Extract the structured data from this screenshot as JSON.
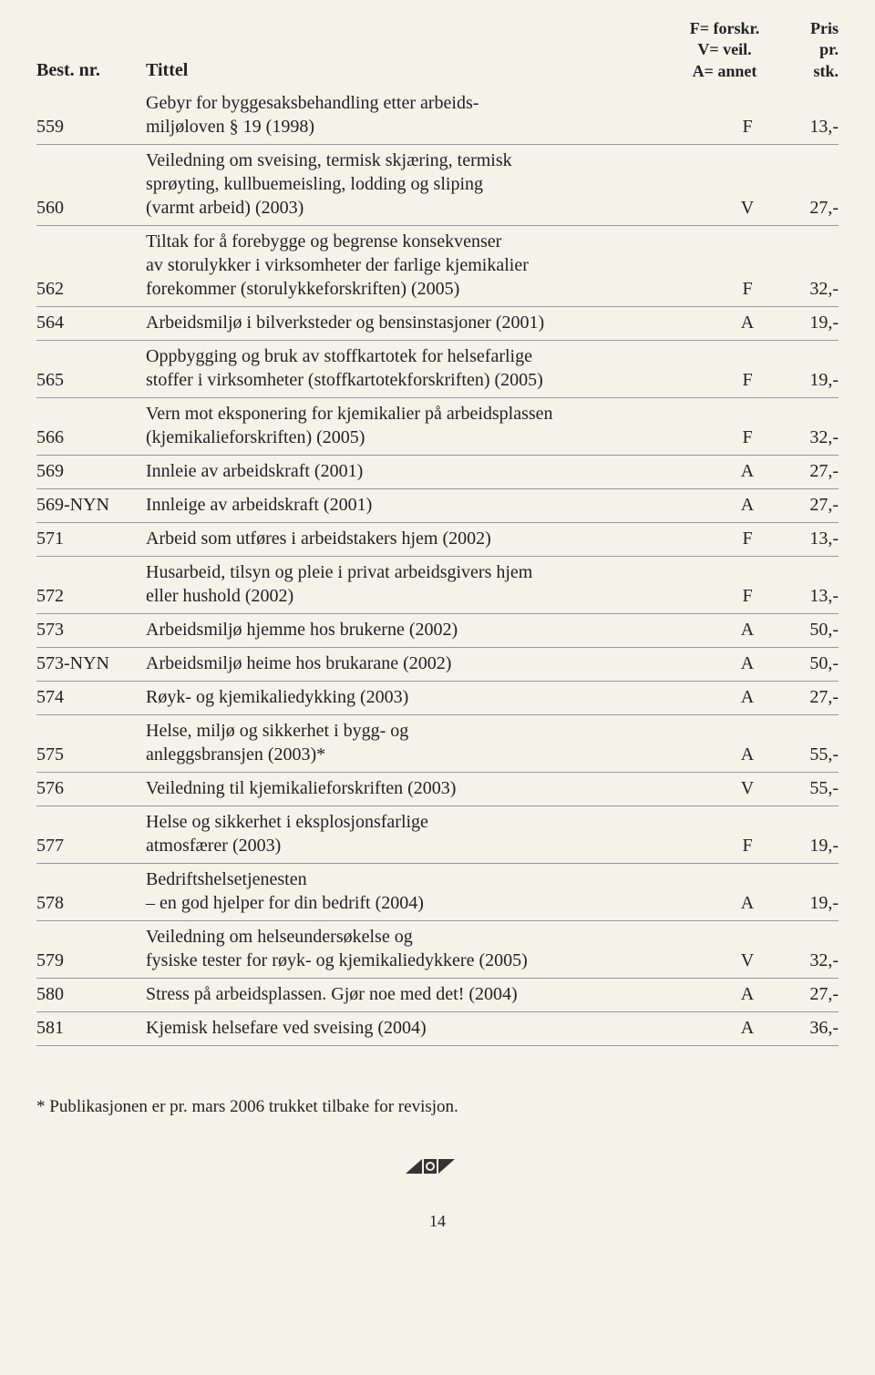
{
  "header": {
    "col1": "Best. nr.",
    "col2": "Tittel",
    "col3_line1": "F= forskr.",
    "col3_line2": "V= veil.",
    "col3_line3": "A= annet",
    "col4_line1": "Pris",
    "col4_line2": "pr.",
    "col4_line3": "stk."
  },
  "rows": [
    {
      "id": "559",
      "title": "Gebyr for byggesaksbehandling etter arbeids-\nmiljøloven § 19 (1998)",
      "code": "F",
      "price": "13,-"
    },
    {
      "id": "560",
      "title": "Veiledning om sveising, termisk skjæring, termisk\nsprøyting, kullbuemeisling, lodding og sliping\n(varmt arbeid) (2003)",
      "code": "V",
      "price": "27,-"
    },
    {
      "id": "562",
      "title": "Tiltak for å forebygge og begrense konsekvenser\nav storulykker i virksomheter der farlige kjemikalier\nforekommer (storulykkeforskriften) (2005)",
      "code": "F",
      "price": "32,-"
    },
    {
      "id": "564",
      "title": "Arbeidsmiljø i bilverksteder og bensinstasjoner (2001)",
      "code": "A",
      "price": "19,-"
    },
    {
      "id": "565",
      "title": "Oppbygging og bruk av stoffkartotek for helsefarlige\nstoffer i virksomheter (stoffkartotekforskriften) (2005)",
      "code": "F",
      "price": "19,-"
    },
    {
      "id": "566",
      "title": "Vern mot eksponering for kjemikalier på arbeidsplassen\n(kjemikalieforskriften) (2005)",
      "code": "F",
      "price": "32,-"
    },
    {
      "id": "569",
      "title": "Innleie av arbeidskraft (2001)",
      "code": "A",
      "price": "27,-"
    },
    {
      "id": "569-NYN",
      "title": "Innleige av arbeidskraft (2001)",
      "code": "A",
      "price": "27,-"
    },
    {
      "id": "571",
      "title": "Arbeid som utføres i arbeidstakers hjem (2002)",
      "code": "F",
      "price": "13,-"
    },
    {
      "id": "572",
      "title": "Husarbeid, tilsyn og pleie i privat arbeidsgivers hjem\neller hushold (2002)",
      "code": "F",
      "price": "13,-"
    },
    {
      "id": "573",
      "title": "Arbeidsmiljø hjemme hos brukerne (2002)",
      "code": "A",
      "price": "50,-"
    },
    {
      "id": "573-NYN",
      "title": "Arbeidsmiljø heime hos brukarane (2002)",
      "code": "A",
      "price": "50,-"
    },
    {
      "id": "574",
      "title": "Røyk- og kjemikaliedykking (2003)",
      "code": "A",
      "price": "27,-"
    },
    {
      "id": "575",
      "title": "Helse, miljø og sikkerhet i bygg- og\nanleggsbransjen (2003)*",
      "code": "A",
      "price": "55,-"
    },
    {
      "id": "576",
      "title": "Veiledning til kjemikalieforskriften (2003)",
      "code": "V",
      "price": "55,-"
    },
    {
      "id": "577",
      "title": "Helse og sikkerhet i eksplosjonsfarlige\natmosfærer (2003)",
      "code": "F",
      "price": "19,-"
    },
    {
      "id": "578",
      "title": "Bedriftshelsetjenesten\n– en god hjelper for din bedrift (2004)",
      "code": "A",
      "price": "19,-"
    },
    {
      "id": "579",
      "title": "Veiledning om helseundersøkelse og\nfysiske tester for røyk- og kjemikaliedykkere (2005)",
      "code": "V",
      "price": "32,-"
    },
    {
      "id": "580",
      "title": "Stress på arbeidsplassen. Gjør noe med det! (2004)",
      "code": "A",
      "price": "27,-"
    },
    {
      "id": "581",
      "title": "Kjemisk helsefare ved sveising (2004)",
      "code": "A",
      "price": "36,-"
    }
  ],
  "footnote": "* Publikasjonen er pr. mars 2006 trukket tilbake for revisjon.",
  "page_number": "14",
  "logo_color": "#333333"
}
